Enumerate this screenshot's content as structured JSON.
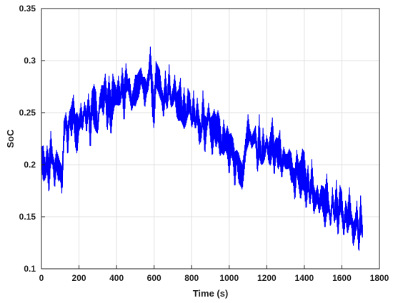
{
  "chart_data": {
    "type": "line",
    "xlabel": "Time (s)",
    "ylabel": "SoC",
    "xlim": [
      0,
      1800
    ],
    "ylim": [
      0.1,
      0.35
    ],
    "x_ticks": [
      "0",
      "200",
      "400",
      "600",
      "800",
      "1000",
      "1200",
      "1400",
      "1600",
      "1800"
    ],
    "y_ticks": [
      "0.1",
      "0.15",
      "0.2",
      "0.25",
      "0.3",
      "0.35"
    ],
    "grid": true,
    "series": [
      {
        "color": "#0000ff",
        "x": [
          0,
          10,
          20,
          30,
          40,
          50,
          60,
          70,
          80,
          90,
          100,
          110,
          120,
          130,
          140,
          150,
          160,
          170,
          180,
          190,
          200,
          210,
          220,
          230,
          240,
          250,
          260,
          270,
          280,
          290,
          300,
          310,
          320,
          330,
          340,
          350,
          360,
          370,
          380,
          390,
          400,
          410,
          420,
          430,
          440,
          450,
          460,
          470,
          480,
          490,
          500,
          510,
          520,
          530,
          540,
          550,
          560,
          570,
          580,
          590,
          600,
          610,
          620,
          630,
          640,
          650,
          660,
          670,
          680,
          690,
          700,
          710,
          720,
          730,
          740,
          750,
          760,
          770,
          780,
          790,
          800,
          810,
          820,
          830,
          840,
          850,
          860,
          870,
          880,
          890,
          900,
          910,
          920,
          930,
          940,
          950,
          960,
          970,
          980,
          990,
          1000,
          1010,
          1020,
          1030,
          1040,
          1050,
          1060,
          1070,
          1080,
          1090,
          1100,
          1110,
          1120,
          1130,
          1140,
          1150,
          1160,
          1170,
          1180,
          1190,
          1200,
          1210,
          1220,
          1230,
          1240,
          1250,
          1260,
          1270,
          1280,
          1290,
          1300,
          1310,
          1320,
          1330,
          1340,
          1350,
          1360,
          1370,
          1380,
          1390,
          1400,
          1410,
          1420,
          1430,
          1440,
          1450,
          1460,
          1470,
          1480,
          1490,
          1500,
          1510,
          1520,
          1530,
          1540,
          1550,
          1560,
          1570,
          1580,
          1590,
          1600,
          1610,
          1620,
          1630,
          1640,
          1650,
          1660,
          1670,
          1680,
          1690,
          1700,
          1710
        ],
        "y": [
          0.207,
          0.201,
          0.194,
          0.206,
          0.189,
          0.217,
          0.205,
          0.189,
          0.205,
          0.196,
          0.194,
          0.184,
          0.231,
          0.244,
          0.222,
          0.246,
          0.241,
          0.255,
          0.233,
          0.23,
          0.238,
          0.248,
          0.24,
          0.255,
          0.24,
          0.259,
          0.231,
          0.26,
          0.257,
          0.251,
          0.236,
          0.259,
          0.266,
          0.261,
          0.276,
          0.249,
          0.267,
          0.246,
          0.267,
          0.268,
          0.265,
          0.271,
          0.264,
          0.281,
          0.258,
          0.283,
          0.277,
          0.273,
          0.258,
          0.266,
          0.271,
          0.274,
          0.278,
          0.286,
          0.278,
          0.269,
          0.273,
          0.282,
          0.301,
          0.268,
          0.249,
          0.287,
          0.283,
          0.278,
          0.267,
          0.255,
          0.276,
          0.26,
          0.283,
          0.26,
          0.265,
          0.275,
          0.258,
          0.257,
          0.263,
          0.248,
          0.254,
          0.245,
          0.26,
          0.26,
          0.242,
          0.257,
          0.24,
          0.253,
          0.233,
          0.23,
          0.255,
          0.228,
          0.238,
          0.252,
          0.235,
          0.227,
          0.24,
          0.231,
          0.238,
          0.226,
          0.217,
          0.226,
          0.222,
          0.223,
          0.209,
          0.22,
          0.214,
          0.194,
          0.209,
          0.197,
          0.192,
          0.188,
          0.203,
          0.221,
          0.233,
          0.229,
          0.221,
          0.226,
          0.229,
          0.203,
          0.228,
          0.205,
          0.218,
          0.212,
          0.223,
          0.21,
          0.215,
          0.228,
          0.204,
          0.218,
          0.21,
          0.217,
          0.196,
          0.209,
          0.203,
          0.203,
          0.206,
          0.197,
          0.19,
          0.18,
          0.203,
          0.19,
          0.185,
          0.196,
          0.193,
          0.172,
          0.188,
          0.168,
          0.19,
          0.166,
          0.166,
          0.172,
          0.16,
          0.171,
          0.166,
          0.157,
          0.172,
          0.16,
          0.146,
          0.17,
          0.15,
          0.168,
          0.145,
          0.168,
          0.161,
          0.138,
          0.156,
          0.145,
          0.16,
          0.149,
          0.133,
          0.139,
          0.154,
          0.126,
          0.153,
          0.136
        ],
        "noise": [
          0.01,
          0.017,
          0.008,
          0.012,
          0.018,
          0.015,
          0.005,
          0.013,
          0.009,
          0.012,
          0.008,
          0.014,
          0.011,
          0.006,
          0.016,
          0.005,
          0.016,
          0.012,
          0.015,
          0.02,
          0.006,
          0.011,
          0.007,
          0.005,
          0.011,
          0.009,
          0.019,
          0.011,
          0.02,
          0.019,
          0.006,
          0.006,
          0.01,
          0.015,
          0.011,
          0.018,
          0.018,
          0.019,
          0.02,
          0.011,
          0.007,
          0.014,
          0.006,
          0.012,
          0.019,
          0.014,
          0.005,
          0.01,
          0.007,
          0.008,
          0.015,
          0.012,
          0.012,
          0.007,
          0.006,
          0.015,
          0.006,
          0.009,
          0.012,
          0.019,
          0.016,
          0.012,
          0.012,
          0.013,
          0.007,
          0.011,
          0.014,
          0.008,
          0.013,
          0.005,
          0.008,
          0.011,
          0.011,
          0.015,
          0.02,
          0.008,
          0.02,
          0.006,
          0.013,
          0.009,
          0.007,
          0.014,
          0.006,
          0.011,
          0.014,
          0.007,
          0.016,
          0.019,
          0.007,
          0.007,
          0.01,
          0.02,
          0.013,
          0.015,
          0.014,
          0.018,
          0.005,
          0.017,
          0.008,
          0.014,
          0.02,
          0.01,
          0.011,
          0.018,
          0.005,
          0.014,
          0.012,
          0.012,
          0.01,
          0.009,
          0.015,
          0.005,
          0.006,
          0.006,
          0.008,
          0.012,
          0.02,
          0.005,
          0.017,
          0.006,
          0.005,
          0.008,
          0.016,
          0.017,
          0.016,
          0.008,
          0.015,
          0.016,
          0.01,
          0.008,
          0.007,
          0.007,
          0.009,
          0.014,
          0.007,
          0.016,
          0.011,
          0.011,
          0.019,
          0.019,
          0.019,
          0.016,
          0.011,
          0.008,
          0.015,
          0.014,
          0.007,
          0.008,
          0.008,
          0.009,
          0.013,
          0.019,
          0.019,
          0.005,
          0.007,
          0.008,
          0.007,
          0.017,
          0.015,
          0.012,
          0.013,
          0.008,
          0.009,
          0.012,
          0.018,
          0.006,
          0.012,
          0.009,
          0.011,
          0.012,
          0.017,
          0.006
        ]
      }
    ]
  }
}
